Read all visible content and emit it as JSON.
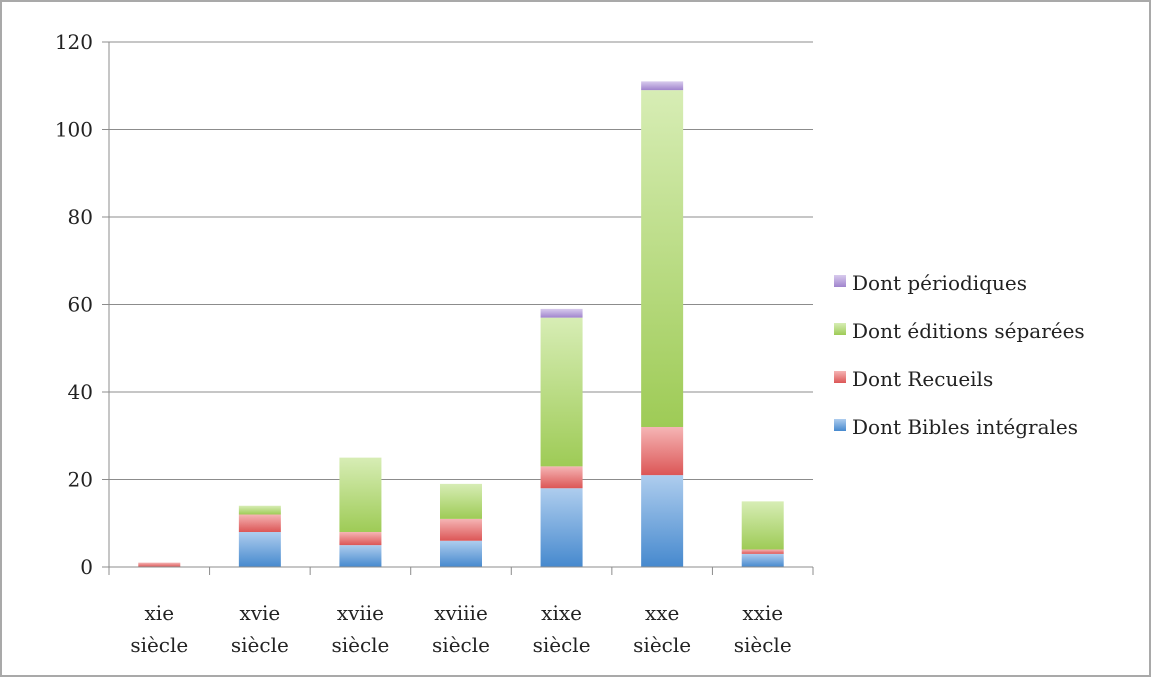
{
  "chart_data": {
    "type": "bar",
    "stacked": true,
    "title": "",
    "xlabel": "",
    "ylabel": "",
    "categories": [
      [
        "xie",
        "siècle"
      ],
      [
        "xvie",
        "siècle"
      ],
      [
        "xviie",
        "siècle"
      ],
      [
        "xviiie",
        "siècle"
      ],
      [
        "xixe",
        "siècle"
      ],
      [
        "xxe",
        "siècle"
      ],
      [
        "xxie",
        "siècle"
      ]
    ],
    "ylim": [
      0,
      120
    ],
    "yticks": [
      "0",
      "20",
      "40",
      "60",
      "80",
      "100",
      "120"
    ],
    "grid": true,
    "legend_position": "right",
    "series": [
      {
        "name": "Dont Bibles intégrales",
        "color": "#4a90d9",
        "values": [
          0,
          8,
          5,
          6,
          18,
          21,
          3
        ]
      },
      {
        "name": "Dont Recueils",
        "color": "#e85b5b",
        "values": [
          1,
          4,
          3,
          5,
          5,
          11,
          1
        ]
      },
      {
        "name": "Dont éditions séparées",
        "color": "#a6d65a",
        "values": [
          0,
          2,
          17,
          8,
          34,
          77,
          11
        ]
      },
      {
        "name": "Dont périodiques",
        "color": "#a88bd8",
        "values": [
          0,
          0,
          0,
          0,
          2,
          2,
          0
        ]
      }
    ]
  }
}
